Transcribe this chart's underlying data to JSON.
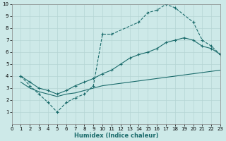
{
  "xlabel": "Humidex (Indice chaleur)",
  "xlim": [
    0,
    23
  ],
  "ylim": [
    0,
    10
  ],
  "xticks": [
    0,
    1,
    2,
    3,
    4,
    5,
    6,
    7,
    8,
    9,
    10,
    11,
    12,
    13,
    14,
    15,
    16,
    17,
    18,
    19,
    20,
    21,
    22,
    23
  ],
  "yticks": [
    1,
    2,
    3,
    4,
    5,
    6,
    7,
    8,
    9,
    10
  ],
  "background_color": "#cde9e8",
  "grid_color": "#b5d5d4",
  "line_color": "#1a6b6b",
  "curve1_x": [
    1,
    2,
    3,
    4,
    5,
    6,
    7,
    8,
    9,
    10,
    11,
    14,
    15,
    16,
    17,
    18,
    20,
    21,
    22,
    23
  ],
  "curve1_y": [
    4.0,
    3.2,
    2.5,
    1.8,
    1.0,
    1.8,
    2.2,
    2.5,
    3.2,
    7.5,
    7.5,
    8.5,
    9.3,
    9.5,
    10.0,
    9.7,
    8.5,
    7.0,
    6.5,
    5.8
  ],
  "curve2_x": [
    1,
    2,
    3,
    4,
    5,
    6,
    7,
    8,
    9,
    10,
    11,
    12,
    13,
    14,
    15,
    16,
    17,
    18,
    19,
    20,
    21,
    22,
    23
  ],
  "curve2_y": [
    4.0,
    3.5,
    3.0,
    2.8,
    2.5,
    2.8,
    3.2,
    3.5,
    3.8,
    4.2,
    4.5,
    5.0,
    5.5,
    5.8,
    6.0,
    6.3,
    6.8,
    7.0,
    7.2,
    7.0,
    6.5,
    6.3,
    5.8
  ],
  "curve3_x": [
    1,
    2,
    3,
    4,
    5,
    6,
    7,
    8,
    9,
    10,
    11,
    12,
    13,
    14,
    15,
    16,
    17,
    18,
    19,
    20,
    21,
    22,
    23
  ],
  "curve3_y": [
    3.5,
    3.0,
    2.7,
    2.5,
    2.3,
    2.5,
    2.6,
    2.8,
    3.0,
    3.2,
    3.3,
    3.4,
    3.5,
    3.6,
    3.7,
    3.8,
    3.9,
    4.0,
    4.1,
    4.2,
    4.3,
    4.4,
    4.5
  ]
}
